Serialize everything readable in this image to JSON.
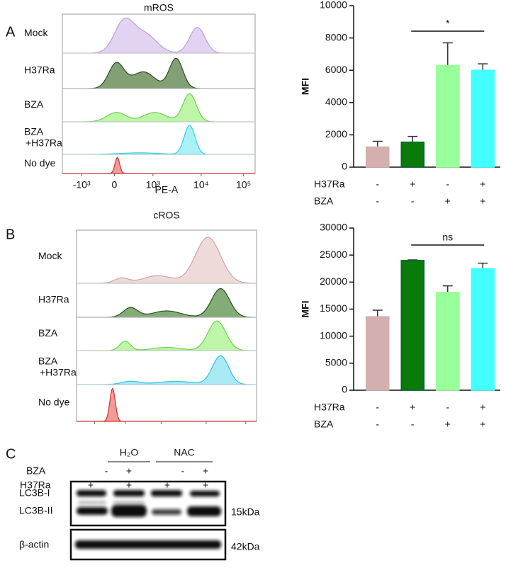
{
  "panel_labels": [
    "A",
    "B",
    "C"
  ],
  "flow": [
    {
      "title": "mROS",
      "rows": [
        "Mock",
        "H37Ra",
        "BZA",
        [
          "BZA",
          "+H37Ra"
        ],
        "No dye"
      ],
      "xtick_labels": [
        "-10³",
        "0",
        "10³",
        "10⁴",
        "10⁵"
      ],
      "xlabel": "PE-A"
    },
    {
      "title": "cROS",
      "rows": [
        "Mock",
        "H37Ra",
        "BZA",
        [
          "BZA",
          "+H37Ra"
        ],
        "No dye"
      ]
    }
  ],
  "chart_data": [
    {
      "type": "bar",
      "ylabel": "MFI",
      "values": [
        1250,
        1550,
        6300,
        6000
      ],
      "errors": [
        350,
        350,
        1400,
        400
      ],
      "colors": [
        "#d4afb0",
        "#0a7a0a",
        "#99ff99",
        "#44ffff"
      ],
      "ylim": [
        0,
        10000
      ],
      "yticks": [
        0,
        2000,
        4000,
        6000,
        8000,
        10000
      ],
      "annotation": "*",
      "conditions": [
        {
          "name": "H37Ra",
          "signs": [
            "-",
            "+",
            "-",
            "+"
          ]
        },
        {
          "name": "BZA",
          "signs": [
            "-",
            "-",
            "+",
            "+"
          ]
        }
      ]
    },
    {
      "type": "bar",
      "ylabel": "MFI",
      "values": [
        13600,
        24000,
        18100,
        22500
      ],
      "errors": [
        1200,
        100,
        1200,
        1000
      ],
      "colors": [
        "#d4afb0",
        "#0a7a0a",
        "#99ff99",
        "#44ffff"
      ],
      "ylim": [
        0,
        30000
      ],
      "yticks": [
        0,
        5000,
        10000,
        15000,
        20000,
        25000,
        30000
      ],
      "annotation": "ns",
      "conditions": [
        {
          "name": "H37Ra",
          "signs": [
            "-",
            "+",
            "-",
            "+"
          ]
        },
        {
          "name": "BZA",
          "signs": [
            "-",
            "-",
            "+",
            "+"
          ]
        }
      ]
    }
  ],
  "blot": {
    "groups": [
      "H₂O",
      "NAC"
    ],
    "rows": [
      {
        "name": "BZA",
        "signs": [
          "-",
          "+",
          "-",
          "+"
        ]
      },
      {
        "name": "H37Ra",
        "signs": [
          "+",
          "+",
          "+",
          "+"
        ]
      }
    ],
    "bands": [
      "LC3B-I",
      "LC3B-II",
      "β-actin"
    ],
    "sizes": [
      "15kDa",
      "42kDa"
    ]
  }
}
